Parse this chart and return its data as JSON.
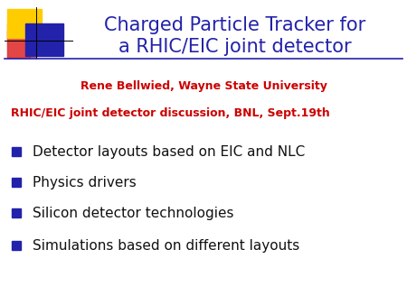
{
  "title_line1": "Charged Particle Tracker for",
  "title_line2": "a RHIC/EIC joint detector",
  "title_color": "#2222aa",
  "author": "Rene Bellwied, Wayne State University",
  "author_color": "#cc0000",
  "event": "RHIC/EIC joint detector discussion, BNL, Sept.19th",
  "event_color": "#cc0000",
  "bullets": [
    "Detector layouts based on EIC and NLC",
    "Physics drivers",
    "Silicon detector technologies",
    "Simulations based on different layouts"
  ],
  "bullet_color": "#111111",
  "bullet_marker_color": "#2222aa",
  "background_color": "#ffffff",
  "logo_yellow": "#ffcc00",
  "logo_blue": "#2222aa",
  "logo_red": "#dd3333",
  "logo_pink": "#ee6666",
  "title_fontsize": 15,
  "author_fontsize": 9,
  "event_fontsize": 9,
  "bullet_fontsize": 11
}
